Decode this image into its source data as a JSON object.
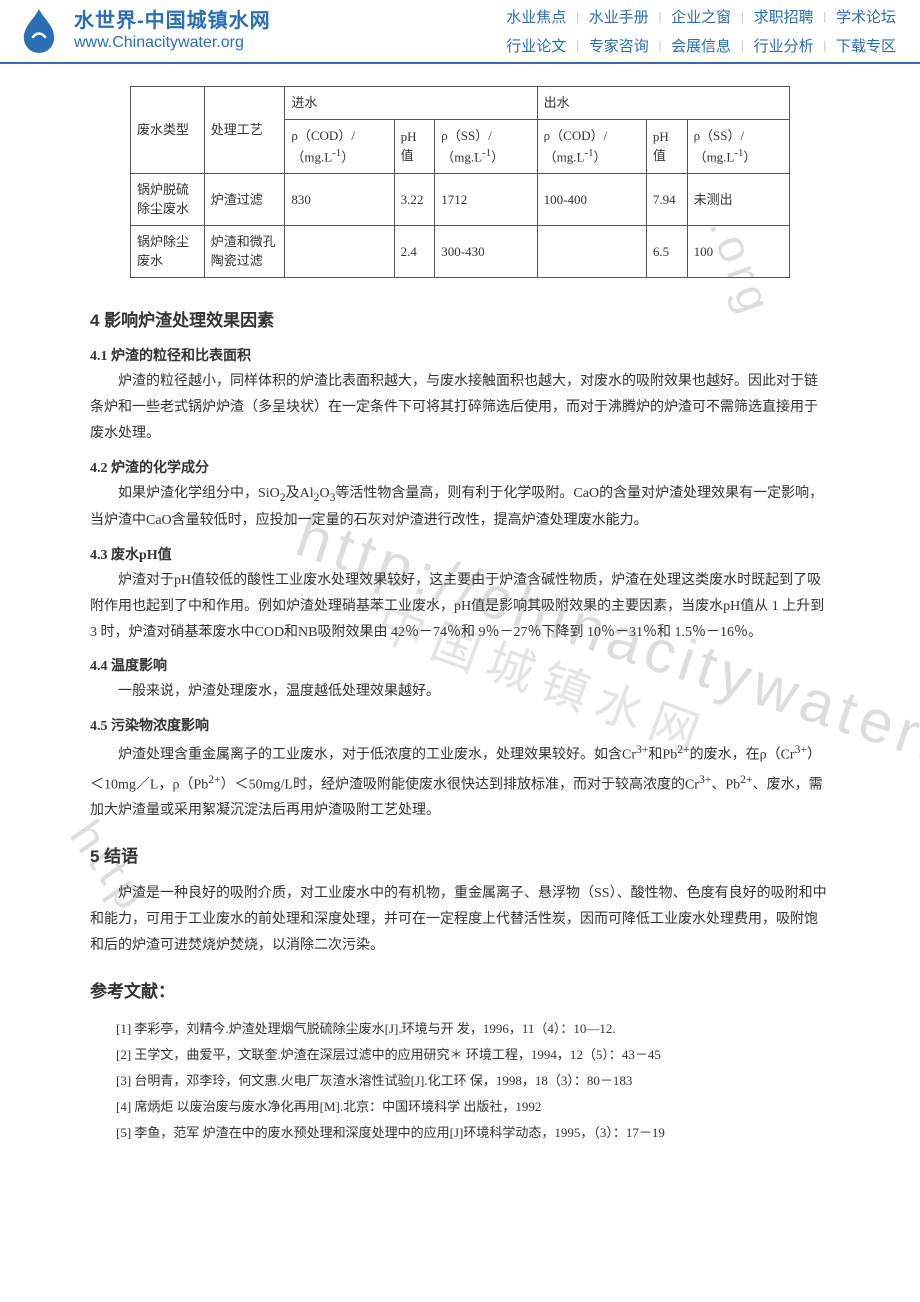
{
  "header": {
    "logo_cn": "水世界-中国城镇水网",
    "logo_en": "www.Chinacitywater.org",
    "nav_row1": [
      "水业焦点",
      "水业手册",
      "企业之窗",
      "求职招聘",
      "学术论坛"
    ],
    "nav_row2": [
      "行业论文",
      "专家咨询",
      "会展信息",
      "行业分析",
      "下载专区"
    ]
  },
  "table": {
    "border_color": "#555",
    "font_size": 13,
    "col_headers": {
      "c1": "废水类型",
      "c2": "处理工艺",
      "group_in": "进水",
      "group_out": "出水",
      "sub_cod_html": "ρ（COD）/（mg.L<sup>-1</sup>）",
      "sub_ph": "pH 值",
      "sub_ss_html": "ρ（SS）/（mg.L<sup>-1</sup>）"
    },
    "rows": [
      {
        "type": "锅炉脱硫除尘废水",
        "proc": "炉渣过滤",
        "in_cod": "830",
        "in_ph": "3.22",
        "in_ss": "1712",
        "out_cod": "100-400",
        "out_ph": "7.94",
        "out_ss": "未测出"
      },
      {
        "type": "锅炉除尘废水",
        "proc": "炉渣和微孔陶瓷过滤",
        "in_cod": "",
        "in_ph": "2.4",
        "in_ss": "300-430",
        "out_cod": "",
        "out_ph": "6.5",
        "out_ss": "100"
      }
    ]
  },
  "sections": {
    "s4": {
      "title": "4  影响炉渣处理效果因素",
      "s41": {
        "h": "4.1  炉渣的粒径和比表面积",
        "p": "炉渣的粒径越小，同样体积的炉渣比表面积越大，与废水接触面积也越大，对废水的吸附效果也越好。因此对于链条炉和一些老式锅炉炉渣（多呈块状）在一定条件下可将其打碎筛选后使用，而对于沸腾炉的炉渣可不需筛选直接用于废水处理。"
      },
      "s42": {
        "h": "4.2  炉渣的化学成分",
        "p_html": "如果炉渣化学组分中，SiO<sub>2</sub>及Al<sub>2</sub>O<sub>3</sub>等活性物含量高，则有利于化学吸附。CaO的含量对炉渣处理效果有一定影响，当炉渣中CaO含量较低时，应投加一定量的石灰对炉渣进行改性，提高炉渣处理废水能力。"
      },
      "s43": {
        "h": "4.3  废水pH值",
        "p": "炉渣对于pH值较低的酸性工业废水处理效果较好，这主要由于炉渣含碱性物质，炉渣在处理这类废水时既起到了吸附作用也起到了中和作用。例如炉渣处理硝基苯工业废水，pH值是影响其吸附效果的主要因素，当废水pH值从 1 上升到 3 时，炉渣对硝基苯废水中COD和NB吸附效果由 42％－74％和 9％－27％下降到 10％－31％和 1.5％－16％。"
      },
      "s44": {
        "h": "4.4  温度影响",
        "p": "一般来说，炉渣处理废水，温度越低处理效果越好。"
      },
      "s45": {
        "h": "4.5  污染物浓度影响",
        "p_html": "炉渣处理含重金属离子的工业废水，对于低浓度的工业废水，处理效果较好。如含Cr<sup>3+</sup>和Pb<sup>2+</sup>的废水，在ρ（Cr<sup>3+</sup>）＜10mg／L，ρ（Pb<sup>2+</sup>）＜50mg/L时，经炉渣吸附能使废水很快达到排放标准，而对于较高浓度的Cr<sup>3+</sup>、Pb<sup>2+</sup>、废水，需加大炉渣量或采用絮凝沉淀法后再用炉渣吸附工艺处理。"
      }
    },
    "s5": {
      "title": "5  结语",
      "p": "炉渣是一种良好的吸附介质，对工业废水中的有机物，重金属离子、悬浮物（SS）、酸性物、色度有良好的吸附和中和能力，可用于工业废水的前处理和深度处理，并可在一定程度上代替活性炭，因而可降低工业废水处理费用，吸附饱和后的炉渣可进焚烧炉焚烧，以消除二次污染。"
    },
    "refs": {
      "title": "参考文献：",
      "items": [
        "[1] 李彩亭，刘精今.炉渣处理烟气脱硫除尘废水[J].环境与开  发，1996，11（4）：10—12.",
        "[2] 王学文，曲爱平，文联奎.炉渣在深层过滤中的应用研究＊  环境工程，1994，12（5）：43－45",
        "[3] 台明青，邓李玲，何文惠.火电厂灰渣水溶性试验[J].化工环  保，1998，18（3）：80－183",
        "[4] 席炳炬  以废治废与废水净化再用[M].北京：中国环境科学  出版社，1992",
        "[5] 李鱼，范军  炉渣在中的废水预处理和深度处理中的应用[J]环境科学动态，1995，（3）：17－19"
      ]
    }
  },
  "watermark": {
    "url": "http://chinacitywater.org",
    "cn": "中国城镇水网"
  },
  "colors": {
    "brand": "#2a6fb3",
    "border": "#555",
    "text": "#333",
    "bg": "#ffffff"
  }
}
